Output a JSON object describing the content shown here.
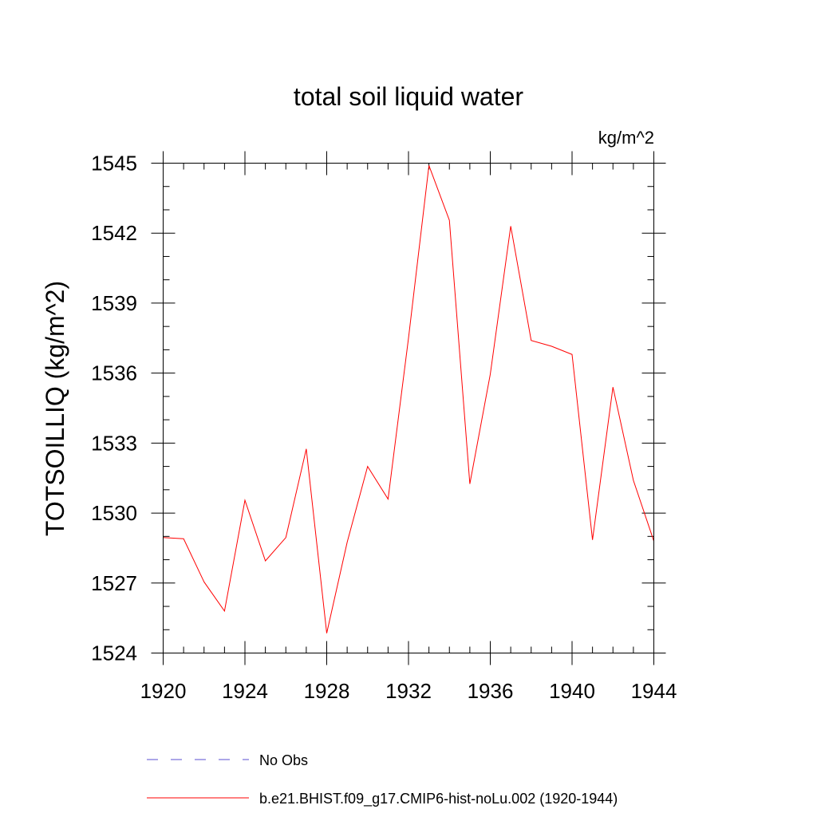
{
  "chart_data": {
    "type": "line",
    "title": "total soil liquid water",
    "units_label": "kg/m^2",
    "ylabel": "TOTSOILLIQ  (kg/m^2)",
    "xlabel": "",
    "xlim": [
      1920,
      1944
    ],
    "ylim": [
      1524,
      1545
    ],
    "x_ticks": [
      1920,
      1924,
      1928,
      1932,
      1936,
      1940,
      1944
    ],
    "y_ticks": [
      1524,
      1527,
      1530,
      1533,
      1536,
      1539,
      1542,
      1545
    ],
    "x_minor_step": 1,
    "y_minor_step": 1,
    "grid": false,
    "legend_position": "bottom",
    "series": [
      {
        "name": "No Obs",
        "color": "#5a4fd0",
        "style": "dashed",
        "x": [],
        "values": []
      },
      {
        "name": "b.e21.BHIST.f09_g17.CMIP6-hist-noLu.002 (1920-1944)",
        "color": "#ff0000",
        "style": "solid",
        "x": [
          1920,
          1921,
          1922,
          1923,
          1924,
          1925,
          1926,
          1927,
          1928,
          1929,
          1930,
          1931,
          1932,
          1933,
          1934,
          1935,
          1936,
          1937,
          1938,
          1939,
          1940,
          1941,
          1942,
          1943,
          1944
        ],
        "values": [
          1528.95,
          1528.9,
          1527.05,
          1525.8,
          1530.55,
          1527.95,
          1528.95,
          1532.75,
          1524.85,
          1528.75,
          1532.0,
          1530.6,
          1537.5,
          1544.9,
          1542.55,
          1531.25,
          1535.95,
          1542.3,
          1537.4,
          1537.15,
          1536.8,
          1528.85,
          1535.4,
          1531.4,
          1528.8
        ]
      }
    ]
  }
}
